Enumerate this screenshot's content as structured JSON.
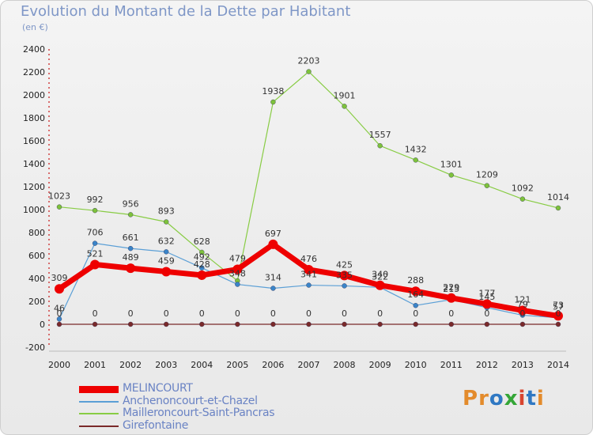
{
  "title": "Evolution du Montant de la Dette par Habitant",
  "subtitle": "(en €)",
  "logo": {
    "text": "Proxiti",
    "colors": [
      "#e38b2c",
      "#e38b2c",
      "#2f78c3",
      "#35a637",
      "#d8442f",
      "#2f78c3",
      "#e38b2c"
    ]
  },
  "chart_data": {
    "type": "line",
    "title": "Evolution du Montant de la Dette par Habitant",
    "subtitle": "(en €)",
    "x": [
      "2000",
      "2001",
      "2002",
      "2003",
      "2004",
      "2005",
      "2006",
      "2007",
      "2008",
      "2009",
      "2010",
      "2011",
      "2012",
      "2013",
      "2014"
    ],
    "ylim": [
      -200,
      2400
    ],
    "yticks": [
      -200,
      0,
      200,
      400,
      600,
      800,
      1000,
      1200,
      1400,
      1600,
      1800,
      2000,
      2200,
      2400
    ],
    "grid": false,
    "legend_position": "bottom-left",
    "series": [
      {
        "name": "MELINCOURT",
        "color": "#ee0000",
        "marker_color": "#ee0000",
        "width": 7,
        "values": [
          309,
          521,
          489,
          459,
          428,
          479,
          697,
          476,
          425,
          340,
          288,
          229,
          177,
          121,
          73
        ],
        "labels_above": [
          309,
          521,
          489,
          459,
          428,
          479,
          697,
          476,
          425,
          340,
          288,
          229,
          177,
          121,
          73
        ]
      },
      {
        "name": "Anchenoncourt-et-Chazel",
        "color": "#5b9fd6",
        "marker_color": "#3a84c8",
        "width": 1.2,
        "values": [
          46,
          706,
          661,
          632,
          492,
          348,
          314,
          341,
          335,
          322,
          164,
          215,
          145,
          79,
          57
        ],
        "labels_above": [
          46,
          706,
          661,
          632,
          492,
          348,
          314,
          341,
          335,
          322,
          164,
          215,
          145,
          79,
          57
        ]
      },
      {
        "name": "Mailleroncourt-Saint-Pancras",
        "color": "#88cc44",
        "marker_color": "#7dc23b",
        "width": 1.2,
        "values": [
          1023,
          992,
          956,
          893,
          628,
          379,
          1938,
          2203,
          1901,
          1557,
          1432,
          1301,
          1209,
          1092,
          1014
        ],
        "labels_above": [
          1023,
          992,
          956,
          893,
          628,
          null,
          1938,
          2203,
          1901,
          1557,
          1432,
          1301,
          1209,
          1092,
          1014
        ]
      },
      {
        "name": "Girefontaine",
        "color": "#7a2a2a",
        "marker_color": "#7a2a2a",
        "width": 1.2,
        "values": [
          0,
          0,
          0,
          0,
          0,
          0,
          0,
          0,
          0,
          0,
          0,
          0,
          0,
          0,
          0
        ],
        "labels_above": [
          0,
          0,
          0,
          0,
          0,
          0,
          0,
          0,
          0,
          0,
          0,
          0,
          0,
          0,
          0
        ]
      }
    ]
  }
}
